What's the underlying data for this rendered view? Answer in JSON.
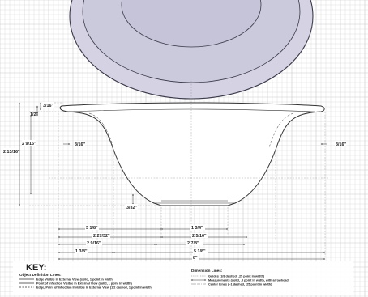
{
  "dimensions": {
    "rim_thickness": "3/16\"",
    "rim_drop": "1/2\"",
    "height_left": "2 9/16\"",
    "overall_height": "2 13/16\"",
    "side_left": "3/16\"",
    "side_right": "3/16\"",
    "base_thickness": "3/32\"",
    "row1_left": "3 1/8\"",
    "row1_right": "1 3/4\"",
    "row2_left": "2 27/32\"",
    "row2_right": "2 5/16\"",
    "row3_left": "2 9/16\"",
    "row3_right": "2 7/8\"",
    "row4_left": "1 3/8\"",
    "row4_right": "5 1/8\"",
    "row5_overall": "8\""
  },
  "key": {
    "title": "KEY:",
    "object_heading": "Object Definition Lines:",
    "object_lines": [
      "Edge Visible in External View (solid, 1 point in width)",
      "Point of Inflection Visible in External View (solid, 1 point in width)",
      "Edge, Point of Inflection Invisible in External View (1/2 dashed, 1 point in width)"
    ],
    "dimension_heading": "Dimension Lines:",
    "dimension_lines": [
      "Guides (1/8 dashed, .25 point in width)",
      "Measurements (solid, .5 point in width, with arrowhead)",
      "Center Lines (~1 dashed, .25 point in width)"
    ]
  },
  "colors": {
    "bowl_fill": "#cfcde0",
    "grid_line": "#c9c9c9",
    "outline": "#333333",
    "guide": "#8a8a8a"
  }
}
